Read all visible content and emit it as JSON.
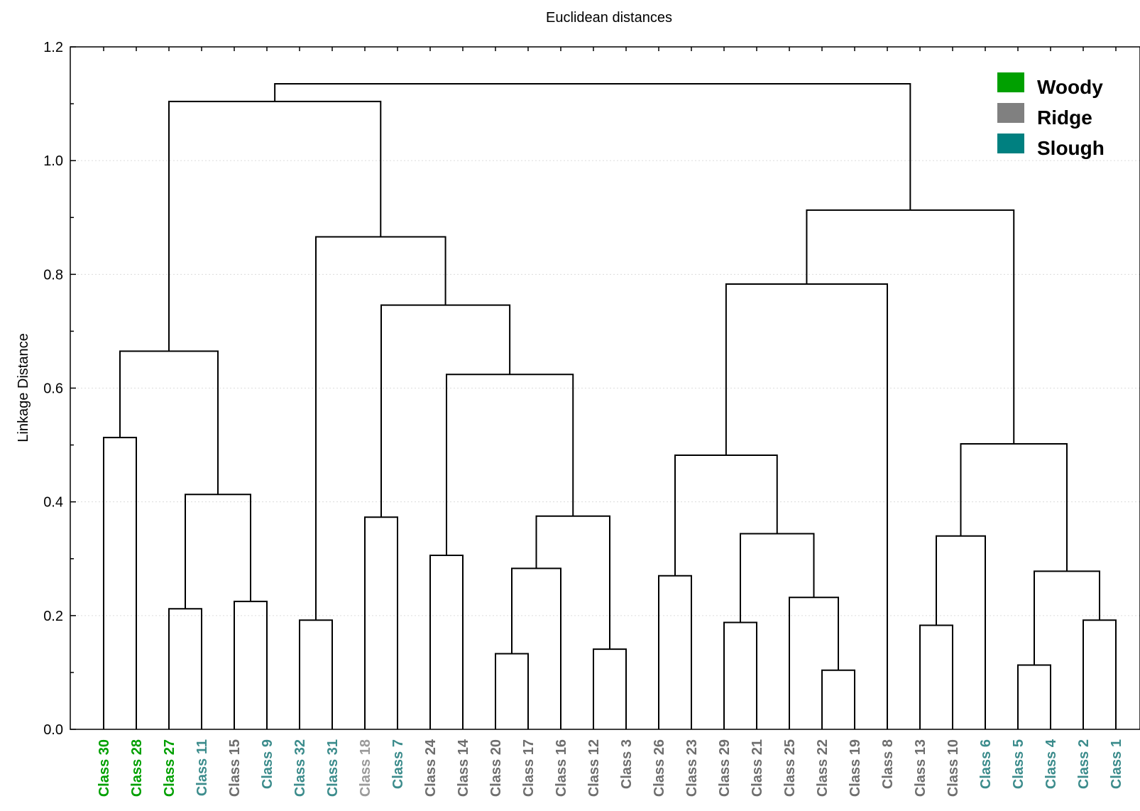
{
  "chart_data": {
    "type": "dendrogram",
    "title": "Euclidean distances",
    "ylabel": "Linkage Distance",
    "ylim": [
      0,
      1.2
    ],
    "yticks": [
      "0.0",
      "0.2",
      "0.4",
      "0.6",
      "0.8",
      "1.0",
      "1.2"
    ],
    "leaves": [
      {
        "label": "Class 30",
        "group": "Woody"
      },
      {
        "label": "Class 28",
        "group": "Woody"
      },
      {
        "label": "Class 27",
        "group": "Woody"
      },
      {
        "label": "Class 11",
        "group": "Slough"
      },
      {
        "label": "Class 15",
        "group": "Ridge"
      },
      {
        "label": "Class 9",
        "group": "Slough"
      },
      {
        "label": "Class 32",
        "group": "Slough"
      },
      {
        "label": "Class 31",
        "group": "Slough"
      },
      {
        "label": "Class 18",
        "group": "LightRidge"
      },
      {
        "label": "Class 7",
        "group": "Slough"
      },
      {
        "label": "Class 24",
        "group": "Ridge"
      },
      {
        "label": "Class 14",
        "group": "Ridge"
      },
      {
        "label": "Class 20",
        "group": "Ridge"
      },
      {
        "label": "Class 17",
        "group": "Ridge"
      },
      {
        "label": "Class 16",
        "group": "Ridge"
      },
      {
        "label": "Class 12",
        "group": "Ridge"
      },
      {
        "label": "Class 3",
        "group": "Ridge"
      },
      {
        "label": "Class 26",
        "group": "Ridge"
      },
      {
        "label": "Class 23",
        "group": "Ridge"
      },
      {
        "label": "Class 29",
        "group": "Ridge"
      },
      {
        "label": "Class 21",
        "group": "Ridge"
      },
      {
        "label": "Class 25",
        "group": "Ridge"
      },
      {
        "label": "Class 22",
        "group": "Ridge"
      },
      {
        "label": "Class 19",
        "group": "Ridge"
      },
      {
        "label": "Class 8",
        "group": "Ridge"
      },
      {
        "label": "Class 13",
        "group": "Ridge"
      },
      {
        "label": "Class 10",
        "group": "Ridge"
      },
      {
        "label": "Class 6",
        "group": "Slough"
      },
      {
        "label": "Class 5",
        "group": "Slough"
      },
      {
        "label": "Class 4",
        "group": "Slough"
      },
      {
        "label": "Class 2",
        "group": "Slough"
      },
      {
        "label": "Class 1",
        "group": "Slough"
      }
    ],
    "merges": [
      {
        "a": 0,
        "b": 1,
        "height": 0.513
      },
      {
        "a": 2,
        "b": 3,
        "height": 0.212
      },
      {
        "a": 4,
        "b": 5,
        "height": 0.225
      },
      {
        "a": "m1",
        "b": "m2",
        "height": 0.413
      },
      {
        "a": "m0",
        "b": "m3",
        "height": 0.665
      },
      {
        "a": 6,
        "b": 7,
        "height": 0.192
      },
      {
        "a": 8,
        "b": 9,
        "height": 0.373
      },
      {
        "a": 10,
        "b": 11,
        "height": 0.306
      },
      {
        "a": 12,
        "b": 13,
        "height": 0.133
      },
      {
        "a": "m8",
        "b": 14,
        "height": 0.283
      },
      {
        "a": 15,
        "b": 16,
        "height": 0.141
      },
      {
        "a": "m9",
        "b": "m10",
        "height": 0.375
      },
      {
        "a": "m7",
        "b": "m11",
        "height": 0.624
      },
      {
        "a": "m6",
        "b": "m12",
        "height": 0.746
      },
      {
        "a": "m5",
        "b": "m13",
        "height": 0.866
      },
      {
        "a": "m4",
        "b": "m14",
        "height": 1.104
      },
      {
        "a": 17,
        "b": 18,
        "height": 0.27
      },
      {
        "a": 19,
        "b": 20,
        "height": 0.188
      },
      {
        "a": 22,
        "b": 23,
        "height": 0.104
      },
      {
        "a": 21,
        "b": "m18",
        "height": 0.232
      },
      {
        "a": "m17",
        "b": "m19",
        "height": 0.344
      },
      {
        "a": "m16",
        "b": "m20",
        "height": 0.482
      },
      {
        "a": "m21",
        "b": 24,
        "height": 0.783
      },
      {
        "a": 25,
        "b": 26,
        "height": 0.183
      },
      {
        "a": "m23",
        "b": 27,
        "height": 0.34
      },
      {
        "a": 28,
        "b": 29,
        "height": 0.113
      },
      {
        "a": 30,
        "b": 31,
        "height": 0.192
      },
      {
        "a": "m25",
        "b": "m26",
        "height": 0.278
      },
      {
        "a": "m24",
        "b": "m27",
        "height": 0.502
      },
      {
        "a": "m22",
        "b": "m28",
        "height": 0.913
      },
      {
        "a": "m15",
        "b": "m29",
        "height": 1.135
      }
    ],
    "legend": {
      "position": "top-right",
      "items": [
        {
          "name": "Woody",
          "color": "#00a000"
        },
        {
          "name": "Ridge",
          "color": "#808080"
        },
        {
          "name": "Slough",
          "color": "#008080"
        }
      ]
    },
    "label_colors": {
      "Woody": "#00a000",
      "Ridge": "#6e6e6e",
      "Slough": "#3c8c8c",
      "LightRidge": "#9a9a9a"
    },
    "grid": true
  }
}
